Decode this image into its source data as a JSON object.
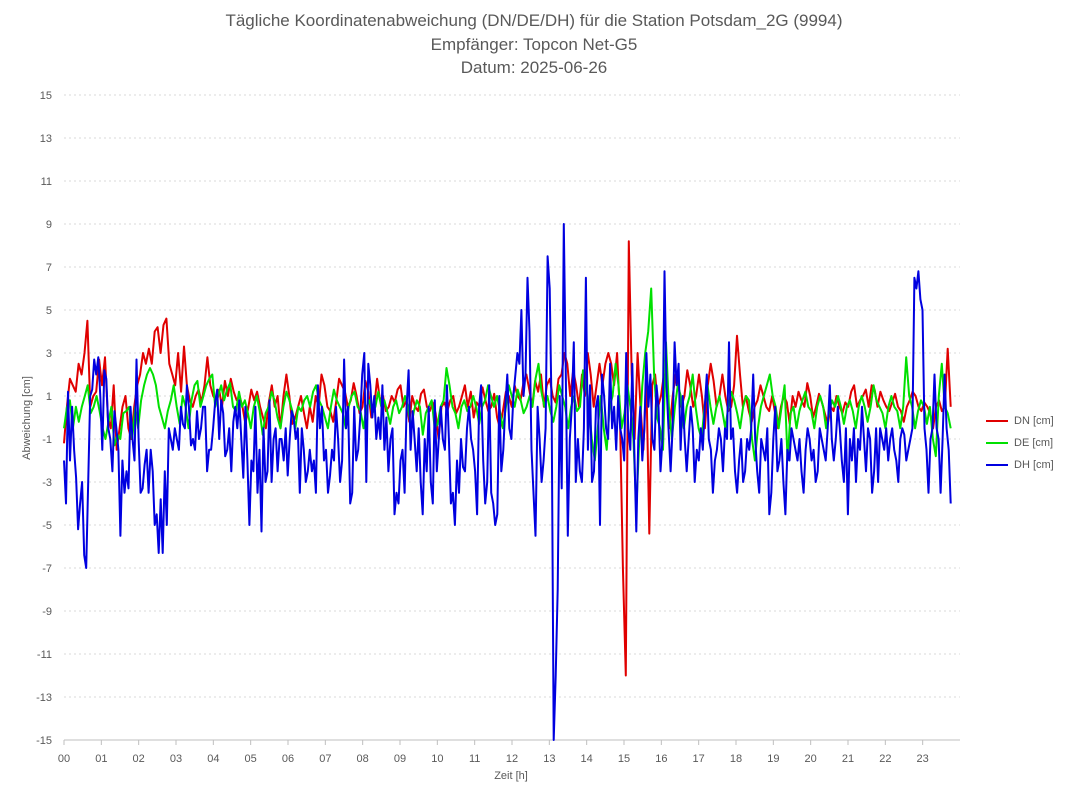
{
  "chart_data": {
    "type": "line",
    "title": "Tägliche Koordinatenabweichung (DN/DE/DH) für die Station Potsdam_2G (9994)",
    "subtitle": "Empfänger: Topcon Net-G5",
    "date_line": "Datum: 2025-06-26",
    "xlabel": "Zeit [h]",
    "ylabel": "Abweichung [cm]",
    "xlim": [
      0,
      24
    ],
    "ylim": [
      -15,
      15
    ],
    "x_ticks": [
      "00",
      "01",
      "02",
      "03",
      "04",
      "05",
      "06",
      "07",
      "08",
      "09",
      "10",
      "11",
      "12",
      "13",
      "14",
      "15",
      "16",
      "17",
      "18",
      "19",
      "20",
      "21",
      "22",
      "23"
    ],
    "y_ticks": [
      15,
      13,
      11,
      9,
      7,
      5,
      3,
      1,
      -1,
      -3,
      -5,
      -7,
      -9,
      -11,
      -13,
      -15
    ],
    "grid": "horizontal-dotted",
    "legend_position": "right",
    "step_hours": 0.125,
    "series": [
      {
        "name": "DN [cm]",
        "color": "#e00000",
        "values": [
          -1.2,
          0.5,
          1.8,
          1.5,
          1.2,
          2.5,
          2,
          3,
          4.5,
          0.5,
          1,
          1.2,
          2.7,
          1.5,
          2.8,
          0,
          -0.5,
          1.5,
          -1.5,
          -0.5,
          0.5,
          1,
          -0.5,
          -1,
          0.5,
          1.5,
          2,
          3,
          2.5,
          3.2,
          2.5,
          4,
          4.2,
          3,
          4.3,
          4.6,
          2.5,
          2,
          1.5,
          3,
          1.2,
          3.3,
          1.5,
          0.8,
          0.5,
          1,
          1.3,
          0.7,
          1.5,
          2.8,
          1.5,
          1,
          0.8,
          1.3,
          0.5,
          1.7,
          1,
          1.8,
          1.2,
          0.8,
          1,
          0.5,
          -0.3,
          0.5,
          1.3,
          0.8,
          1.2,
          0.5,
          0,
          -0.5,
          0.7,
          1.5,
          0.5,
          1,
          -0.5,
          1,
          2,
          1,
          -0.3,
          0,
          0.5,
          1,
          0.2,
          -0.5,
          0.5,
          -0.2,
          1,
          0.5,
          2,
          1.5,
          0.5,
          0.3,
          -0.2,
          0.7,
          1.8,
          1.5,
          1.2,
          0.5,
          0.8,
          1.6,
          1,
          0.2,
          0.5,
          1.7,
          1.2,
          0,
          0.5,
          1.8,
          0.8,
          1,
          0.3,
          0.5,
          1,
          0.7,
          1.3,
          1.5,
          0.5,
          0.8,
          -0.2,
          1,
          0.5,
          0.3,
          1.1,
          1.3,
          0.5,
          0.3,
          0.7,
          0.2,
          -1,
          0.5,
          0.7,
          0.3,
          0.8,
          1,
          0.2,
          0.5,
          1,
          1.5,
          0.5,
          1.2,
          0,
          0.7,
          0.5,
          1.4,
          0.8,
          0.3,
          0.5,
          1.1,
          0,
          -0.5,
          0.3,
          1.2,
          1,
          0.5,
          1.5,
          1,
          0.8,
          1.6,
          2,
          1.3,
          0.5,
          1.7,
          1.2,
          2,
          0.5,
          1.5,
          1.8,
          1,
          0.7,
          1.8,
          2,
          3,
          2.5,
          1,
          2.2,
          1.5,
          0.5,
          2,
          1,
          3,
          2,
          0.5,
          1.5,
          2.5,
          1.5,
          2.5,
          3,
          2.5,
          1.5,
          3,
          0,
          -7,
          -12,
          8.2,
          2,
          -1,
          3,
          0.5,
          -1.5,
          2,
          -5.4,
          1.5,
          2,
          0.5,
          1,
          2,
          1.5,
          -0.5,
          1,
          2,
          1.5,
          0.5,
          1,
          2.2,
          1.5,
          0.5,
          1,
          2,
          1,
          -0.5,
          1.5,
          2.5,
          1.7,
          0.5,
          1,
          2,
          1,
          0.3,
          0.5,
          1.5,
          3.8,
          2,
          0.5,
          1,
          0.3,
          -0.2,
          0.5,
          0.8,
          1.5,
          1,
          0.5,
          0.3,
          1,
          0.2,
          -0.5,
          0.5,
          1,
          0.7,
          -0.3,
          1,
          0.5,
          1.2,
          0.8,
          0.5,
          1.6,
          1,
          0,
          0.5,
          1.1,
          0.7,
          0.2,
          -0.3,
          0.5,
          0.3,
          1,
          0.5,
          0.2,
          0.7,
          0.5,
          1.2,
          1.5,
          0.5,
          0.8,
          1,
          1.3,
          0.5,
          1.5,
          1.3,
          0.5,
          1.2,
          0.8,
          0.5,
          0.3,
          0.7,
          1.1,
          0.5,
          0.3,
          -0.2,
          0.5,
          0.8,
          1.2,
          1,
          0.5,
          0.3,
          0.7,
          0.5,
          0.2,
          -0.5,
          0.5,
          0.8,
          0.3,
          0.5,
          3.2,
          0.5
        ]
      },
      {
        "name": "DE [cm]",
        "color": "#00e000",
        "values": [
          -0.5,
          0.5,
          0.8,
          -0.5,
          0.5,
          -0.2,
          0.5,
          1,
          1.5,
          0.2,
          0.5,
          1,
          0.3,
          -0.5,
          -1,
          -0.2,
          0.5,
          -1.3,
          -0.8,
          -1,
          0.2,
          0.3,
          0.5,
          -1,
          0.5,
          -0.5,
          0.8,
          1.5,
          2,
          2.3,
          2,
          1.5,
          0.5,
          0,
          -0.5,
          0.3,
          0.8,
          1.5,
          0.5,
          -0.3,
          1,
          0.5,
          -0.5,
          0.8,
          1.5,
          1.7,
          0.5,
          1,
          1.5,
          1.8,
          2,
          0.5,
          1,
          1.5,
          0.8,
          1.3,
          1.6,
          0.5,
          0.3,
          1.2,
          0.5,
          0.8,
          0.2,
          -0.5,
          0.5,
          1,
          0.3,
          -0.8,
          0.2,
          0.5,
          1.2,
          0.8,
          0,
          -0.5,
          0.5,
          1.2,
          0.8,
          0.3,
          -0.5,
          0.5,
          0.3,
          0.8,
          1,
          0.5,
          1.2,
          1.5,
          0.8,
          0.5,
          0,
          -0.5,
          0.5,
          1.3,
          0.8,
          0.5,
          0.2,
          -0.5,
          0.5,
          1,
          1.2,
          0.5,
          0.3,
          -0.5,
          0.5,
          0.8,
          0.2,
          0.5,
          1.2,
          0.5,
          0.8,
          0.3,
          -0.3,
          0.5,
          0.8,
          0.2,
          0.5,
          1,
          0.5,
          -0.5,
          0.3,
          0.8,
          0.5,
          -0.8,
          0.2,
          0.5,
          0.8,
          -0.5,
          -0.3,
          0.5,
          0.8,
          2.3,
          1.5,
          0.5,
          0.2,
          -0.5,
          0.5,
          0.8,
          0.3,
          0.5,
          1,
          0.5,
          -0.3,
          0.5,
          0.8,
          1.5,
          1,
          0.5,
          1,
          0.3,
          -0.5,
          0.5,
          1.5,
          1,
          0.5,
          1.3,
          0.8,
          0.2,
          0.5,
          1,
          0.5,
          1.8,
          2.5,
          1.2,
          0.5,
          1,
          0.3,
          -0.2,
          0.5,
          1.5,
          1,
          0.5,
          -0.5,
          0.5,
          1,
          0.3,
          0.5,
          2.2,
          1.5,
          0.5,
          -1,
          -2,
          -0.5,
          1,
          -0.5,
          -1.5,
          0.5,
          1,
          2.5,
          1.5,
          -0.5,
          0.2,
          1.5,
          0.5,
          -1,
          -4.3,
          -1,
          1.5,
          3,
          4,
          6,
          2,
          0,
          -0.5,
          -1.5,
          3.5,
          0.5,
          -1,
          0.5,
          1.5,
          1,
          -0.5,
          0.5,
          1,
          2,
          0.5,
          -0.5,
          -1,
          0.5,
          1.5,
          0.5,
          -0.3,
          0.5,
          1,
          0.3,
          -0.5,
          0.5,
          1.2,
          0.8,
          0.2,
          -0.5,
          0.5,
          1,
          0.8,
          -1,
          -2,
          -0.5,
          0.5,
          1,
          1.5,
          2,
          1,
          0.5,
          -0.5,
          0.5,
          1.5,
          -2,
          0.2,
          0.5,
          -0.5,
          0.3,
          0.8,
          1.2,
          0.5,
          0.3,
          -0.5,
          0.5,
          1,
          0.5,
          -0.5,
          0.2,
          0.8,
          0.5,
          1,
          0.5,
          -0.3,
          0.5,
          0.8,
          0.3,
          -0.5,
          0.5,
          1,
          0.5,
          -0.2,
          0.5,
          1.5,
          0.8,
          0.5,
          0.2,
          -0.5,
          0.5,
          1,
          0.5,
          0.3,
          -0.5,
          0.5,
          2.8,
          1,
          0.5,
          -0.5,
          0.3,
          0.8,
          0.5,
          -0.3,
          0.5,
          -1,
          -1.8,
          1,
          2.5,
          0.5,
          0.2,
          -0.5
        ]
      },
      {
        "name": "DH [cm]",
        "color": "#0000e0",
        "values": [
          -2,
          -4,
          1.2,
          -2,
          0.5,
          -1.5,
          -2.8,
          -5.2,
          -4,
          -3,
          -6.4,
          -7,
          -3,
          1,
          1.3,
          2.7,
          2,
          2.8,
          1,
          -1.5,
          2.2,
          1.8,
          -0.5,
          -1,
          -2.5,
          0.3,
          -0.5,
          -1.5,
          -5.5,
          -2,
          -3.5,
          -2.5,
          -3.3,
          0.5,
          -1,
          -2,
          2.7,
          -1,
          -3.5,
          -3.3,
          -2.2,
          -1.5,
          -3.5,
          -1.5,
          -2.5,
          -5,
          -4.5,
          -6.3,
          -3.8,
          -6.3,
          -2.5,
          -5,
          -0.5,
          -1,
          -1.5,
          -0.5,
          -1,
          -1.5,
          0.5,
          -0.3,
          -0.5,
          1.5,
          0.5,
          -1.3,
          -1,
          -1.5,
          0.3,
          -1,
          -0.5,
          0.5,
          0.5,
          -2.5,
          -1.5,
          -1.5,
          -0.5,
          0.7,
          1.3,
          -1,
          0.8,
          0.2,
          -1.8,
          -1.5,
          -0.5,
          -2.5,
          -0.2,
          0.5,
          -0.5,
          0.8,
          -1,
          -2.8,
          0.5,
          -2,
          -5,
          -2,
          -2.5,
          0.5,
          -3.5,
          -1.5,
          -5.3,
          -0.5,
          -3,
          -2.5,
          0.8,
          -3,
          -1,
          -0.5,
          -2.5,
          -1,
          -1,
          -2,
          -0.5,
          -2.7,
          -1,
          0.3,
          0,
          -1,
          -0.5,
          -3.5,
          -0.5,
          -1.5,
          -3,
          -2.5,
          -1.5,
          -2.5,
          -2,
          -3.5,
          1.5,
          -0.5,
          0.5,
          -2,
          -1.5,
          -3.5,
          -2.7,
          -1.5,
          -2,
          0.5,
          -1,
          -3,
          -2,
          2.7,
          -0.5,
          0.5,
          -4,
          -3.5,
          0.5,
          -2,
          -1.5,
          0,
          2,
          3,
          -3,
          2.5,
          1.5,
          0,
          1,
          -1,
          0,
          -1,
          1.5,
          -1.5,
          0,
          -2.5,
          -1,
          -0.5,
          -4.5,
          -3.5,
          -4,
          -2,
          -1.5,
          -3.5,
          0.5,
          2.2,
          -1.5,
          0.3,
          -1,
          -2.5,
          -0.5,
          -3,
          -4.5,
          -1,
          -2.5,
          0.5,
          -3,
          -4,
          0.8,
          -2.5,
          -1,
          0.5,
          -1,
          -1.5,
          1.5,
          -1,
          -4,
          -3.5,
          -5,
          -2,
          -3.5,
          -1,
          -2.3,
          -2.5,
          -0.5,
          0.5,
          -1,
          -1.5,
          -2.5,
          -4.5,
          0.5,
          1.5,
          -2,
          -4,
          -3,
          1.5,
          -3.5,
          -4,
          -5,
          -4.5,
          1,
          -2.5,
          -1.5,
          0.5,
          2,
          -0.5,
          -1,
          1,
          2,
          3,
          2.5,
          5,
          1,
          2,
          6.5,
          4,
          -1.5,
          -3.5,
          -5.5,
          0.5,
          -1,
          -3,
          -2,
          -0.5,
          7.5,
          6,
          0,
          -15,
          -12,
          -8,
          1,
          -3.3,
          9,
          2,
          -5.5,
          -1,
          0.5,
          3.5,
          -3,
          -1,
          -2.5,
          -3,
          -0.5,
          6.5,
          -1.5,
          1.5,
          -3,
          -2.5,
          0.5,
          1,
          -5,
          2,
          1,
          -0.5,
          -1,
          2.5,
          -0.5,
          0.5,
          -1.5,
          1,
          -0.5,
          -1,
          -2,
          3,
          -0.5,
          -1.5,
          2.5,
          -1.5,
          -5.3,
          -1,
          0.5,
          -2,
          -0.5,
          3,
          0.5,
          2,
          -1,
          -1.5,
          1.5,
          0.5,
          -2.5,
          -1,
          6.8,
          1.5,
          -0.5,
          -2.5,
          -0.5,
          3.5,
          1.5,
          2.5,
          -1.5,
          1,
          -1,
          -2.5,
          -1,
          0.5,
          -0.5,
          -3,
          -1.5,
          -2,
          -0.5,
          -1.5,
          0.5,
          2,
          -1,
          -1.5,
          -3.5,
          -2,
          -1.5,
          -0.5,
          -1,
          -2.5,
          -0.5,
          -1,
          3.5,
          -1,
          -0.5,
          -2.5,
          -3.5,
          -2,
          -1,
          -3,
          -2.5,
          -1,
          -1.5,
          -0.5,
          2,
          -1,
          -2.5,
          -3.5,
          -1,
          -1.5,
          -2,
          -0.5,
          -4.5,
          -3.5,
          -1,
          0.5,
          -2.5,
          -2,
          -1,
          -3,
          -4.5,
          -1.5,
          -2,
          -0.5,
          -1,
          -1.5,
          -2,
          -1,
          -2.5,
          -3.5,
          -1.5,
          -0.5,
          -1,
          -2,
          -1.5,
          -3,
          -2.5,
          -0.5,
          -1,
          -1.5,
          -2,
          -0.5,
          1.5,
          -1,
          -2,
          -1,
          0.5,
          -0.5,
          -2,
          -3,
          -0.5,
          -4.5,
          -1,
          -2,
          -0.5,
          -3,
          -1,
          -1.5,
          0.5,
          -1,
          -2.5,
          -0.5,
          -1,
          -3.5,
          -2.5,
          -0.5,
          -3,
          -0.5,
          -1,
          -1.5,
          -0.5,
          -2,
          -1,
          -0.5,
          -1.5,
          -2,
          -3,
          -1,
          -0.5,
          -0.8,
          -2,
          -1.5,
          -1,
          -0.5,
          6.5,
          6,
          6.8,
          5.5,
          5,
          -0.5,
          -1.5,
          -3.5,
          -1,
          -0.5,
          2,
          -0.5,
          -1,
          -3.5,
          -1,
          2,
          -0.5,
          -1.5,
          -4
        ]
      }
    ]
  }
}
